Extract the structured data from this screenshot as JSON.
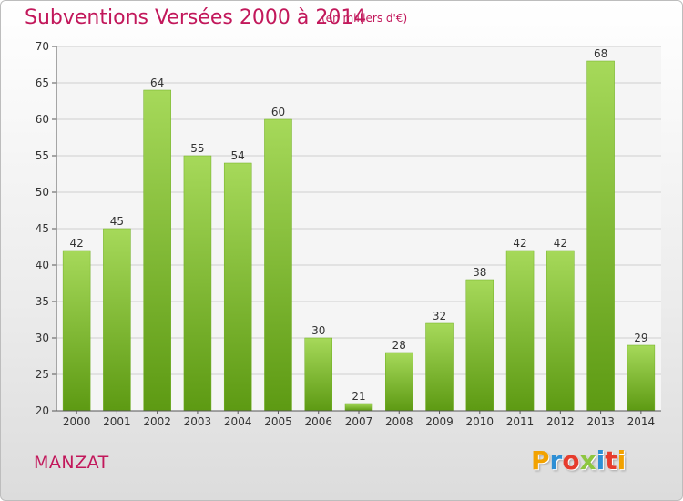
{
  "header": {
    "title": "Subventions Versées 2000 à 2014",
    "subtitle": "(en milliers d'€)"
  },
  "footer": {
    "commune": "MANZAT",
    "logo": "Proxiti"
  },
  "colors": {
    "title": "#c2185b",
    "bar_top": "#a6d95a",
    "bar_bottom": "#5d9a13",
    "grid": "#d0d0d0",
    "logo": [
      "#f2a200",
      "#2d8fd5",
      "#e63c2d",
      "#8dc63f",
      "#2d8fd5",
      "#e63c2d",
      "#f2a200"
    ]
  },
  "chart_data": {
    "type": "bar",
    "categories": [
      "2000",
      "2001",
      "2002",
      "2003",
      "2004",
      "2005",
      "2006",
      "2007",
      "2008",
      "2009",
      "2010",
      "2011",
      "2012",
      "2013",
      "2014"
    ],
    "values": [
      42,
      45,
      64,
      55,
      54,
      60,
      30,
      21,
      28,
      32,
      38,
      42,
      42,
      68,
      29
    ],
    "ylim": [
      20,
      70
    ],
    "yticks": [
      20,
      25,
      30,
      35,
      40,
      45,
      50,
      55,
      60,
      65,
      70
    ],
    "grid": true
  }
}
